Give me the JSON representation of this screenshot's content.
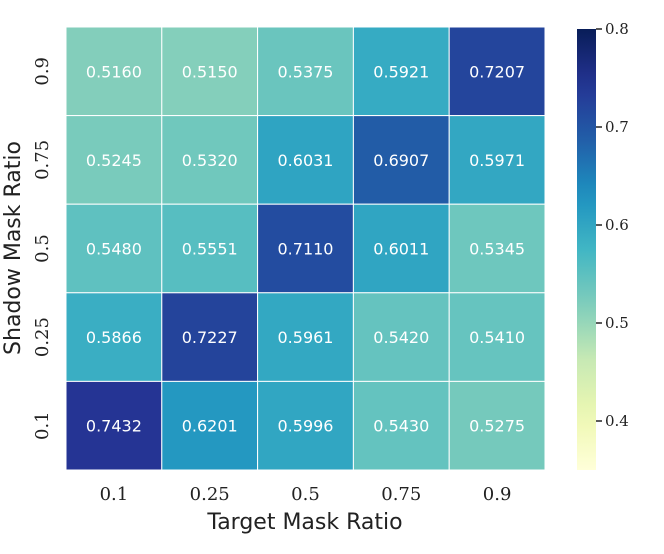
{
  "chart_data": {
    "type": "heatmap",
    "xlabel": "Target Mask Ratio",
    "ylabel": "Shadow Mask Ratio",
    "x_categories": [
      "0.1",
      "0.25",
      "0.5",
      "0.75",
      "0.9"
    ],
    "y_categories": [
      "0.9",
      "0.75",
      "0.5",
      "0.25",
      "0.1"
    ],
    "values": [
      [
        0.516,
        0.515,
        0.5375,
        0.5921,
        0.7207
      ],
      [
        0.5245,
        0.532,
        0.6031,
        0.6907,
        0.5971
      ],
      [
        0.548,
        0.5551,
        0.711,
        0.6011,
        0.5345
      ],
      [
        0.5866,
        0.7227,
        0.5961,
        0.542,
        0.541
      ],
      [
        0.7432,
        0.6201,
        0.5996,
        0.543,
        0.5275
      ]
    ],
    "cell_labels": [
      [
        "0.5160",
        "0.5150",
        "0.5375",
        "0.5921",
        "0.7207"
      ],
      [
        "0.5245",
        "0.5320",
        "0.6031",
        "0.6907",
        "0.5971"
      ],
      [
        "0.5480",
        "0.5551",
        "0.7110",
        "0.6011",
        "0.5345"
      ],
      [
        "0.5866",
        "0.7227",
        "0.5961",
        "0.5420",
        "0.5410"
      ],
      [
        "0.7432",
        "0.6201",
        "0.5996",
        "0.5430",
        "0.5275"
      ]
    ],
    "colorbar": {
      "range": [
        0.35,
        0.8
      ],
      "ticks": [
        0.4,
        0.5,
        0.6,
        0.7,
        0.8
      ],
      "tick_labels": [
        "0.4",
        "0.5",
        "0.6",
        "0.7",
        "0.8"
      ],
      "colormap": "YlGnBu"
    }
  }
}
